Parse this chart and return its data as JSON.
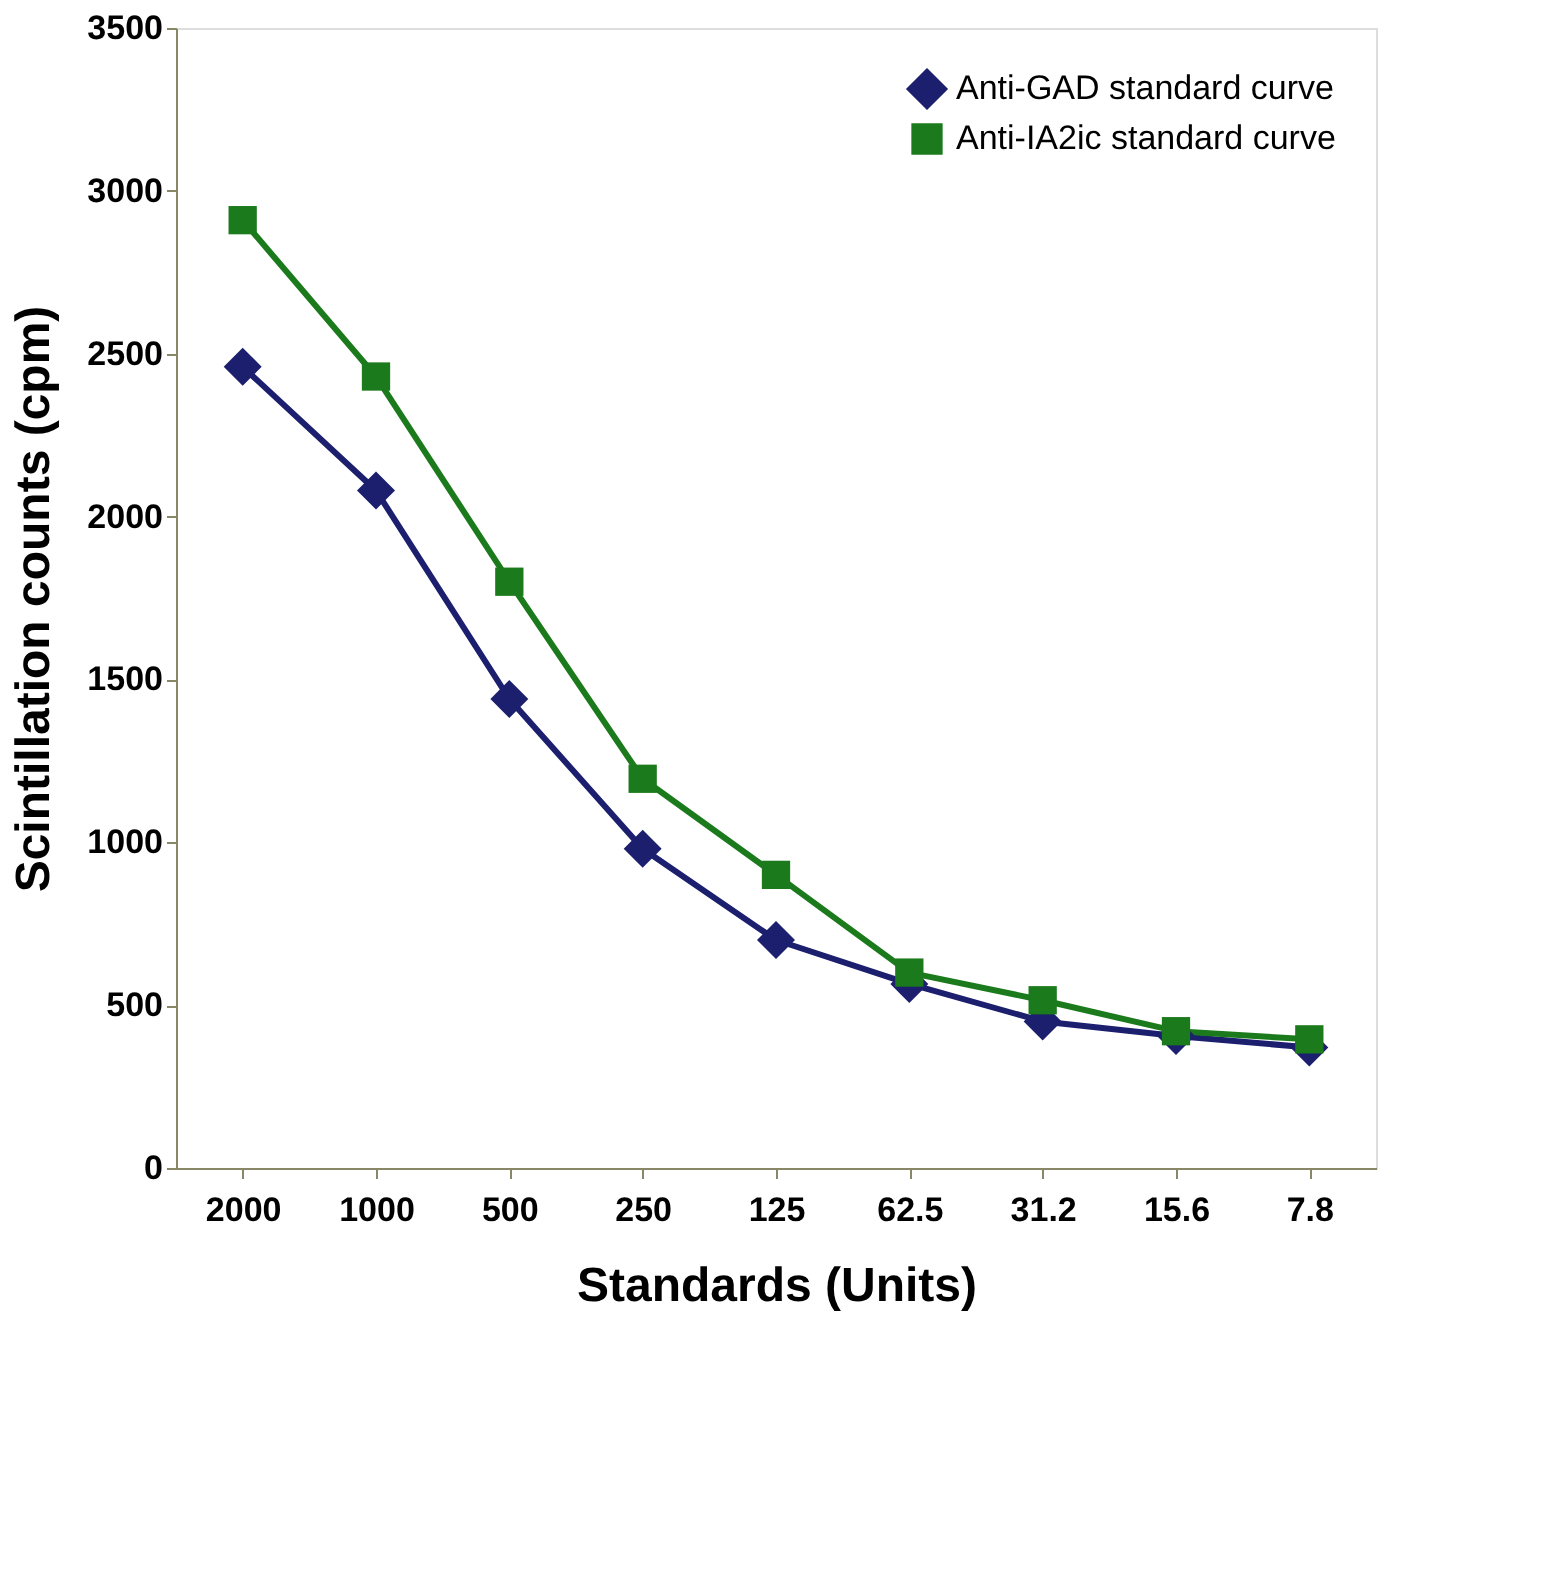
{
  "chart_data": {
    "type": "line",
    "xlabel": "Standards (Units)",
    "ylabel": "Scintillation counts (cpm)",
    "categories": [
      "2000",
      "1000",
      "500",
      "250",
      "125",
      "62.5",
      "31.2",
      "15.6",
      "7.8"
    ],
    "series": [
      {
        "name": "Anti-GAD standard curve",
        "color": "#1b1f6e",
        "marker": "diamond",
        "values": [
          2460,
          2080,
          1440,
          980,
          700,
          565,
          450,
          405,
          370
        ]
      },
      {
        "name": "Anti-IA2ic standard curve",
        "color": "#1b7a1b",
        "marker": "square",
        "values": [
          2910,
          2430,
          1800,
          1195,
          900,
          600,
          515,
          420,
          395
        ]
      }
    ],
    "ylim": [
      0,
      3500
    ],
    "yticks": [
      0,
      500,
      1000,
      1500,
      2000,
      2500,
      3000,
      3500
    ],
    "grid": false,
    "legend": "top right",
    "line_style": "solid"
  }
}
